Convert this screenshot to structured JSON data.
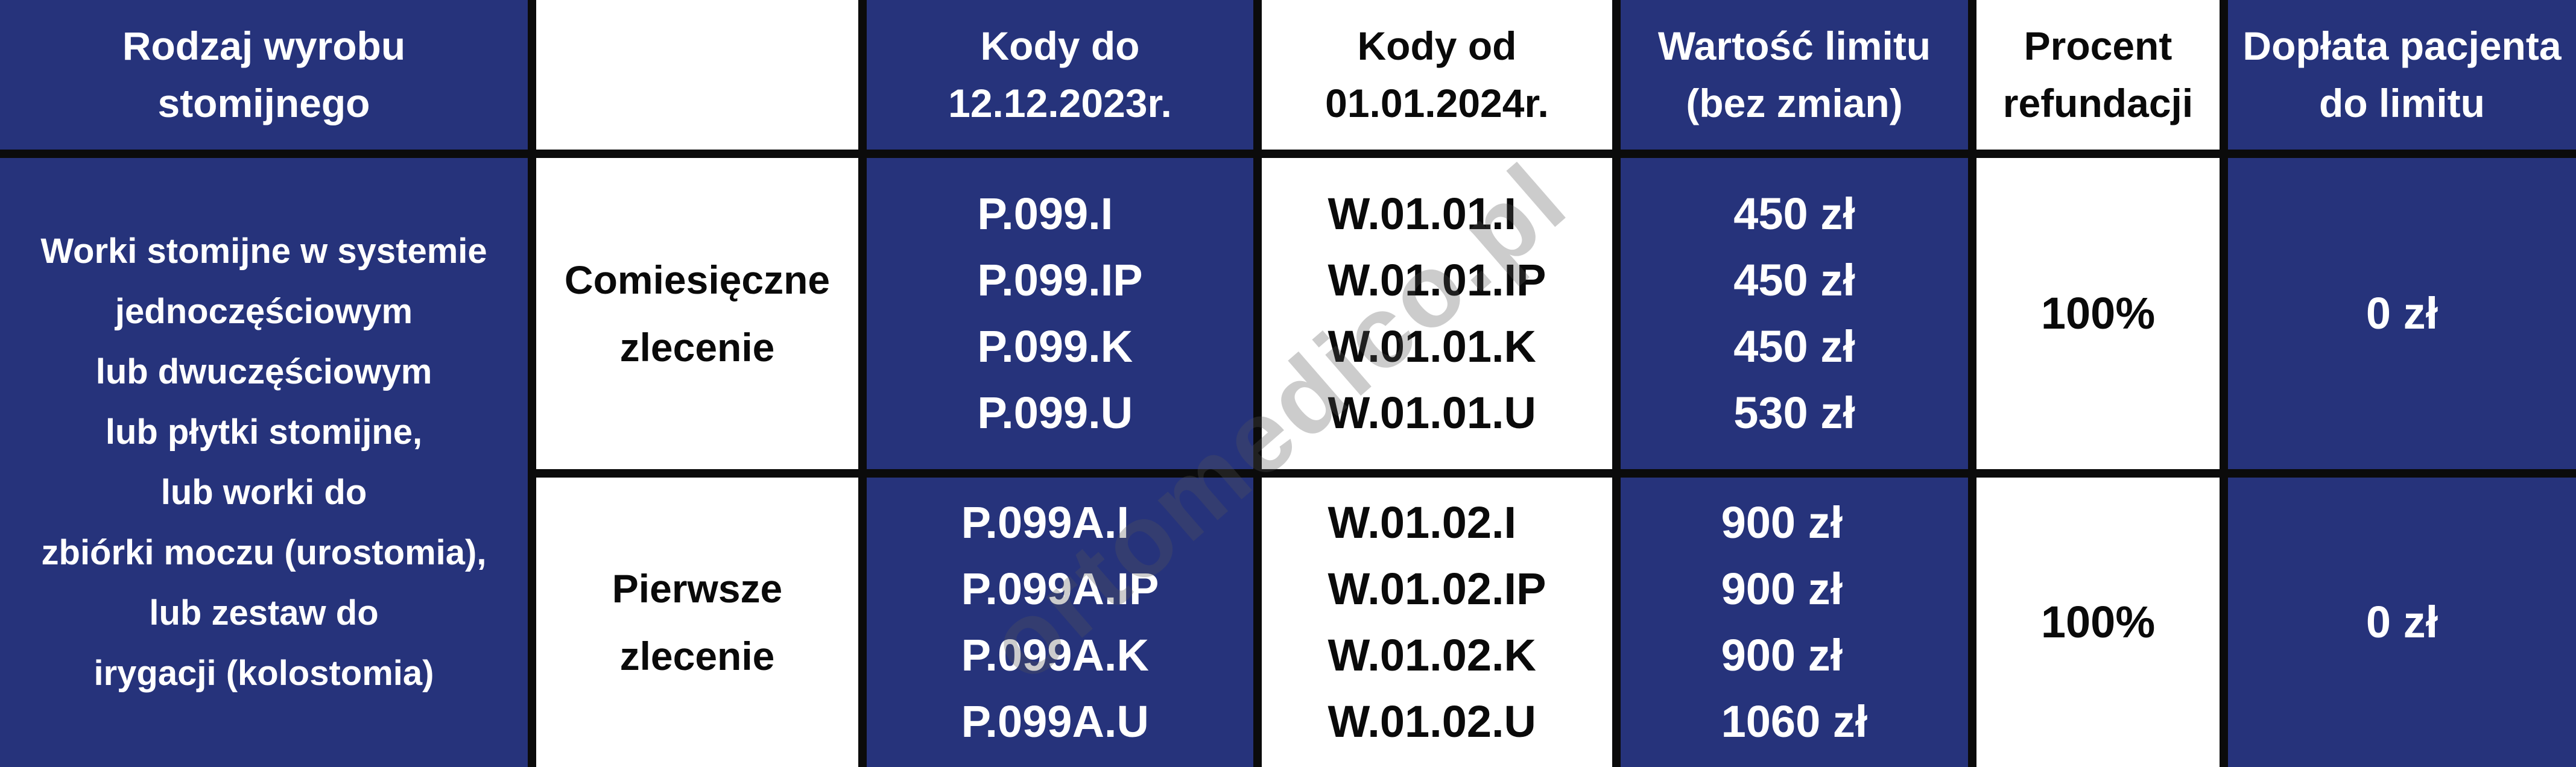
{
  "colors": {
    "navy": "#26337B",
    "white": "#FFFFFF",
    "grid": "#0B0B0B",
    "ink": "#0A0A0A"
  },
  "watermark": "ortomedico.pl",
  "header": {
    "product_type": "Rodzaj wyrobu\nstomijnego",
    "order_type": "",
    "codes_old": "Kody do\n12.12.2023r.",
    "codes_new": "Kody od\n01.01.2024r.",
    "limit_value": "Wartość limitu\n(bez zmian)",
    "refund_percent": "Procent\nrefundacji",
    "patient_copay": "Dopłata pacjenta\ndo limitu"
  },
  "product": "Worki stomijne w systemie\njednoczęściowym\nlub dwuczęściowym\nlub płytki stomijne,\nlub worki do\nzbiórki moczu (urostomia),\nlub zestaw do\nirygacji (kolostomia)",
  "rows": [
    {
      "order_type": "Comiesięczne\nzlecenie",
      "codes_old": "P.099.I\nP.099.IP\nP.099.K\nP.099.U",
      "codes_new": "W.01.01.I\nW.01.01.IP\nW.01.01.K\nW.01.01.U",
      "limit_value": "450 zł\n450 zł\n450 zł\n530 zł",
      "refund_percent": "100%",
      "patient_copay": "0 zł"
    },
    {
      "order_type": "Pierwsze\nzlecenie",
      "codes_old": "P.099A.I\nP.099A.IP\nP.099A.K\nP.099A.U",
      "codes_new": "W.01.02.I\nW.01.02.IP\nW.01.02.K\nW.01.02.U",
      "limit_value": "900 zł\n900 zł\n900 zł\n1060 zł",
      "refund_percent": "100%",
      "patient_copay": "0 zł"
    }
  ]
}
